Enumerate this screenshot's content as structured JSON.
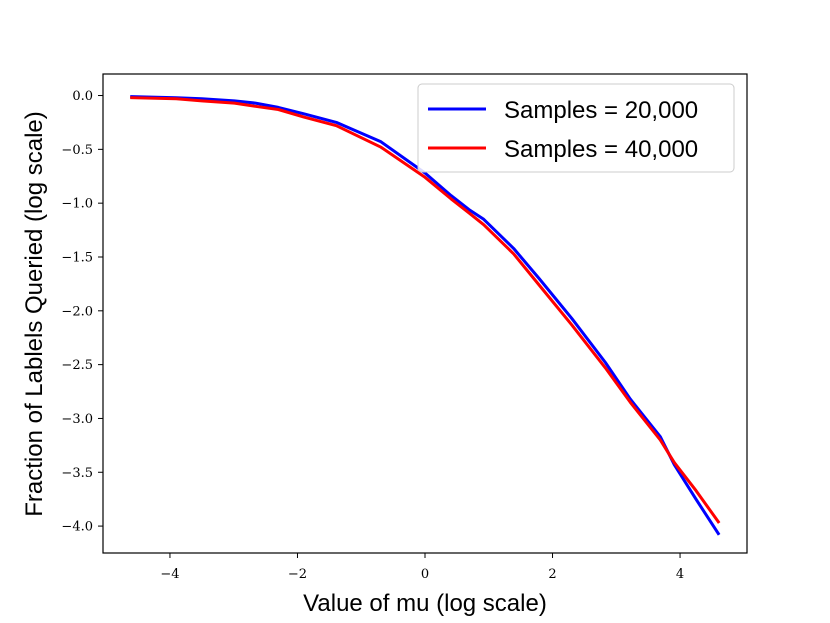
{
  "chart_data": {
    "type": "line",
    "title": "",
    "xlabel": "Value of mu (log scale)",
    "ylabel": "Fraction of Lablels Queried (log scale)",
    "xlim": [
      -5.05,
      5.05
    ],
    "ylim": [
      -4.25,
      0.2
    ],
    "xticks": [
      -4,
      -2,
      0,
      2,
      4
    ],
    "xtick_labels": [
      "−4",
      "−2",
      "0",
      "2",
      "4"
    ],
    "yticks": [
      0.0,
      -0.5,
      -1.0,
      -1.5,
      -2.0,
      -2.5,
      -3.0,
      -3.5,
      -4.0
    ],
    "ytick_labels": [
      "0.0",
      "−0.5",
      "−1.0",
      "−1.5",
      "−2.0",
      "−2.5",
      "−3.0",
      "−3.5",
      "−4.0"
    ],
    "grid": false,
    "legend_position": "top-right",
    "series": [
      {
        "name": "Samples = 20,000",
        "color": "#0000ff",
        "x": [
          -4.6,
          -3.9,
          -3.5,
          -2.99,
          -2.66,
          -2.3,
          -1.9,
          -1.39,
          -0.69,
          0.0,
          0.41,
          0.69,
          0.92,
          1.39,
          1.79,
          2.3,
          2.83,
          3.22,
          3.69,
          3.91,
          4.25,
          4.6
        ],
        "y": [
          -0.01,
          -0.02,
          -0.03,
          -0.05,
          -0.07,
          -0.11,
          -0.17,
          -0.25,
          -0.43,
          -0.72,
          -0.93,
          -1.06,
          -1.15,
          -1.42,
          -1.7,
          -2.07,
          -2.48,
          -2.82,
          -3.17,
          -3.43,
          -3.75,
          -4.07
        ]
      },
      {
        "name": "Samples = 40,000",
        "color": "#ff0000",
        "x": [
          -4.6,
          -3.9,
          -3.5,
          -2.99,
          -2.66,
          -2.3,
          -1.9,
          -1.39,
          -0.69,
          0.0,
          0.41,
          0.69,
          0.92,
          1.39,
          1.79,
          2.3,
          2.83,
          3.22,
          3.69,
          3.91,
          4.25,
          4.6
        ],
        "y": [
          -0.02,
          -0.03,
          -0.05,
          -0.07,
          -0.1,
          -0.13,
          -0.2,
          -0.28,
          -0.48,
          -0.76,
          -0.96,
          -1.09,
          -1.2,
          -1.47,
          -1.76,
          -2.13,
          -2.53,
          -2.85,
          -3.2,
          -3.41,
          -3.67,
          -3.96
        ]
      }
    ]
  }
}
